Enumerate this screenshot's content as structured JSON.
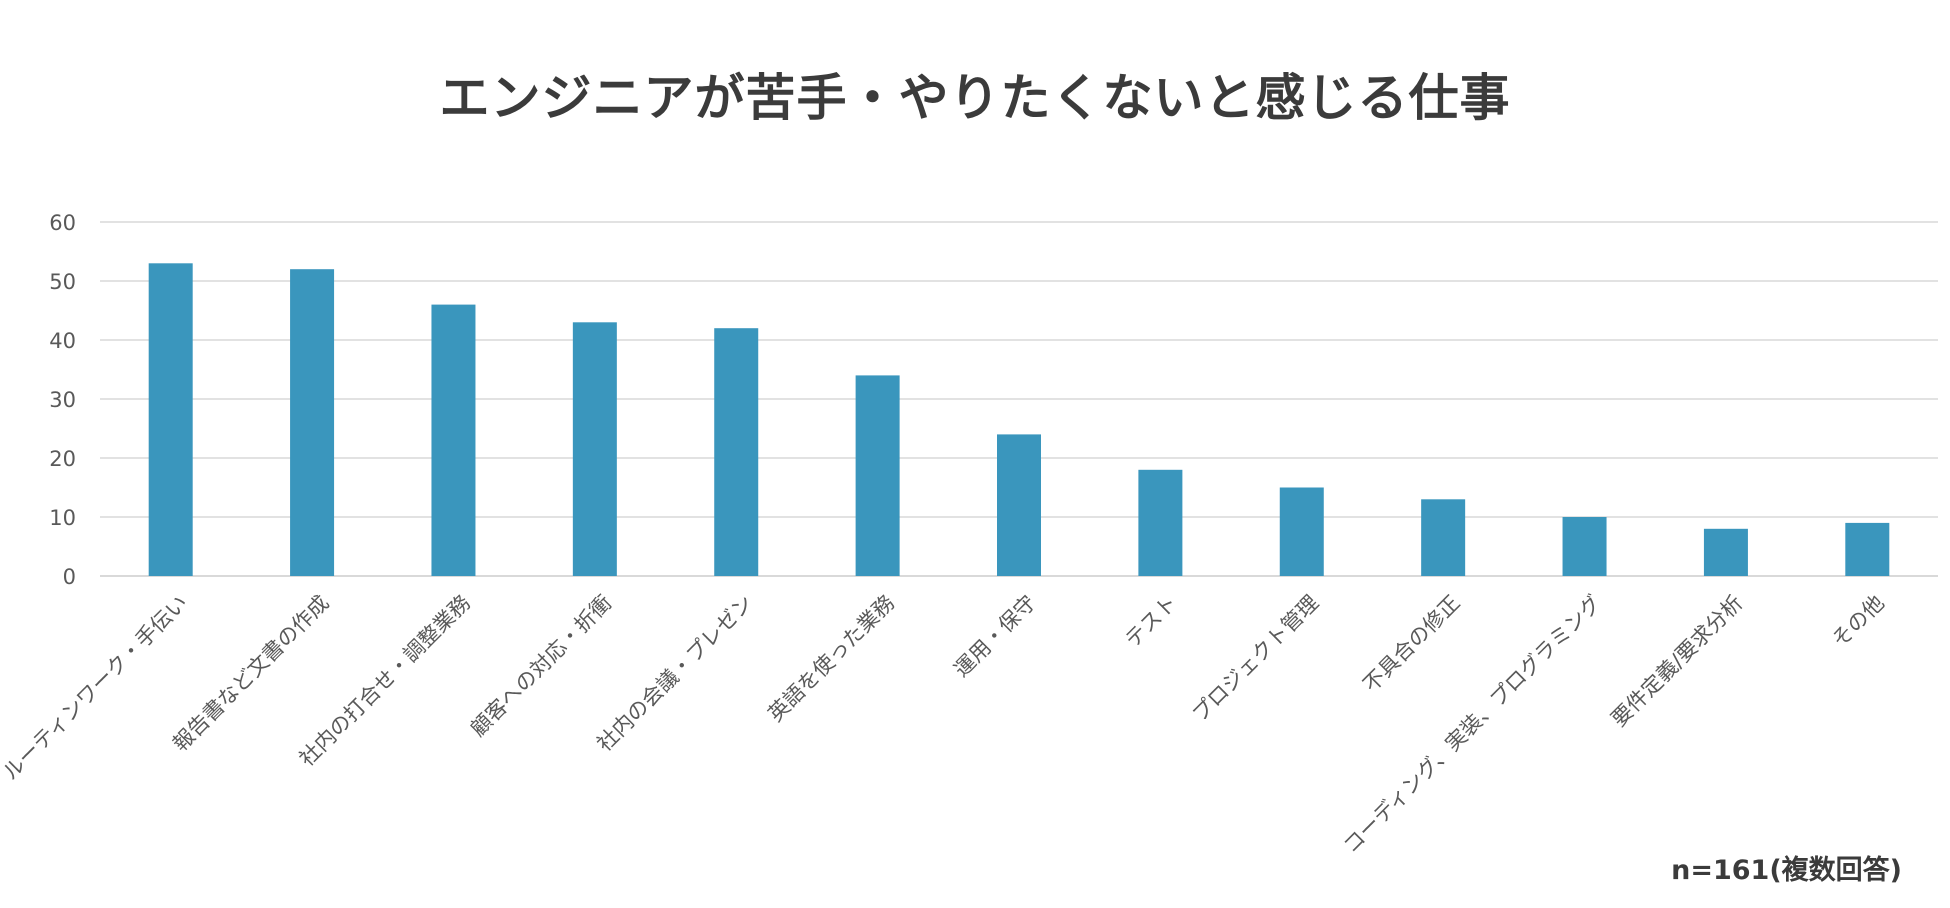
{
  "chart_data": {
    "type": "bar",
    "title": "エンジニアが苦手・やりたくないと感じる仕事",
    "categories": [
      "ルーティンワーク・手伝い",
      "報告書など文書の作成",
      "社内の打合せ・調整業務",
      "顧客への対応・折衝",
      "社内の会議・プレゼン",
      "英語を使った業務",
      "運用・保守",
      "テスト",
      "プロジェクト管理",
      "不具合の修正",
      "コーディング、実装、プログラミング",
      "要件定義/要求分析",
      "その他"
    ],
    "values": [
      53,
      52,
      46,
      43,
      42,
      34,
      24,
      18,
      15,
      13,
      10,
      8,
      9
    ],
    "ylim": [
      0,
      60
    ],
    "yticks": [
      "0",
      "10",
      "20",
      "30",
      "40",
      "50",
      "60"
    ],
    "grid": true,
    "bar_color": "#3a96bd",
    "grid_color": "#d9d9d9",
    "note": "n=161(複数回答)"
  }
}
